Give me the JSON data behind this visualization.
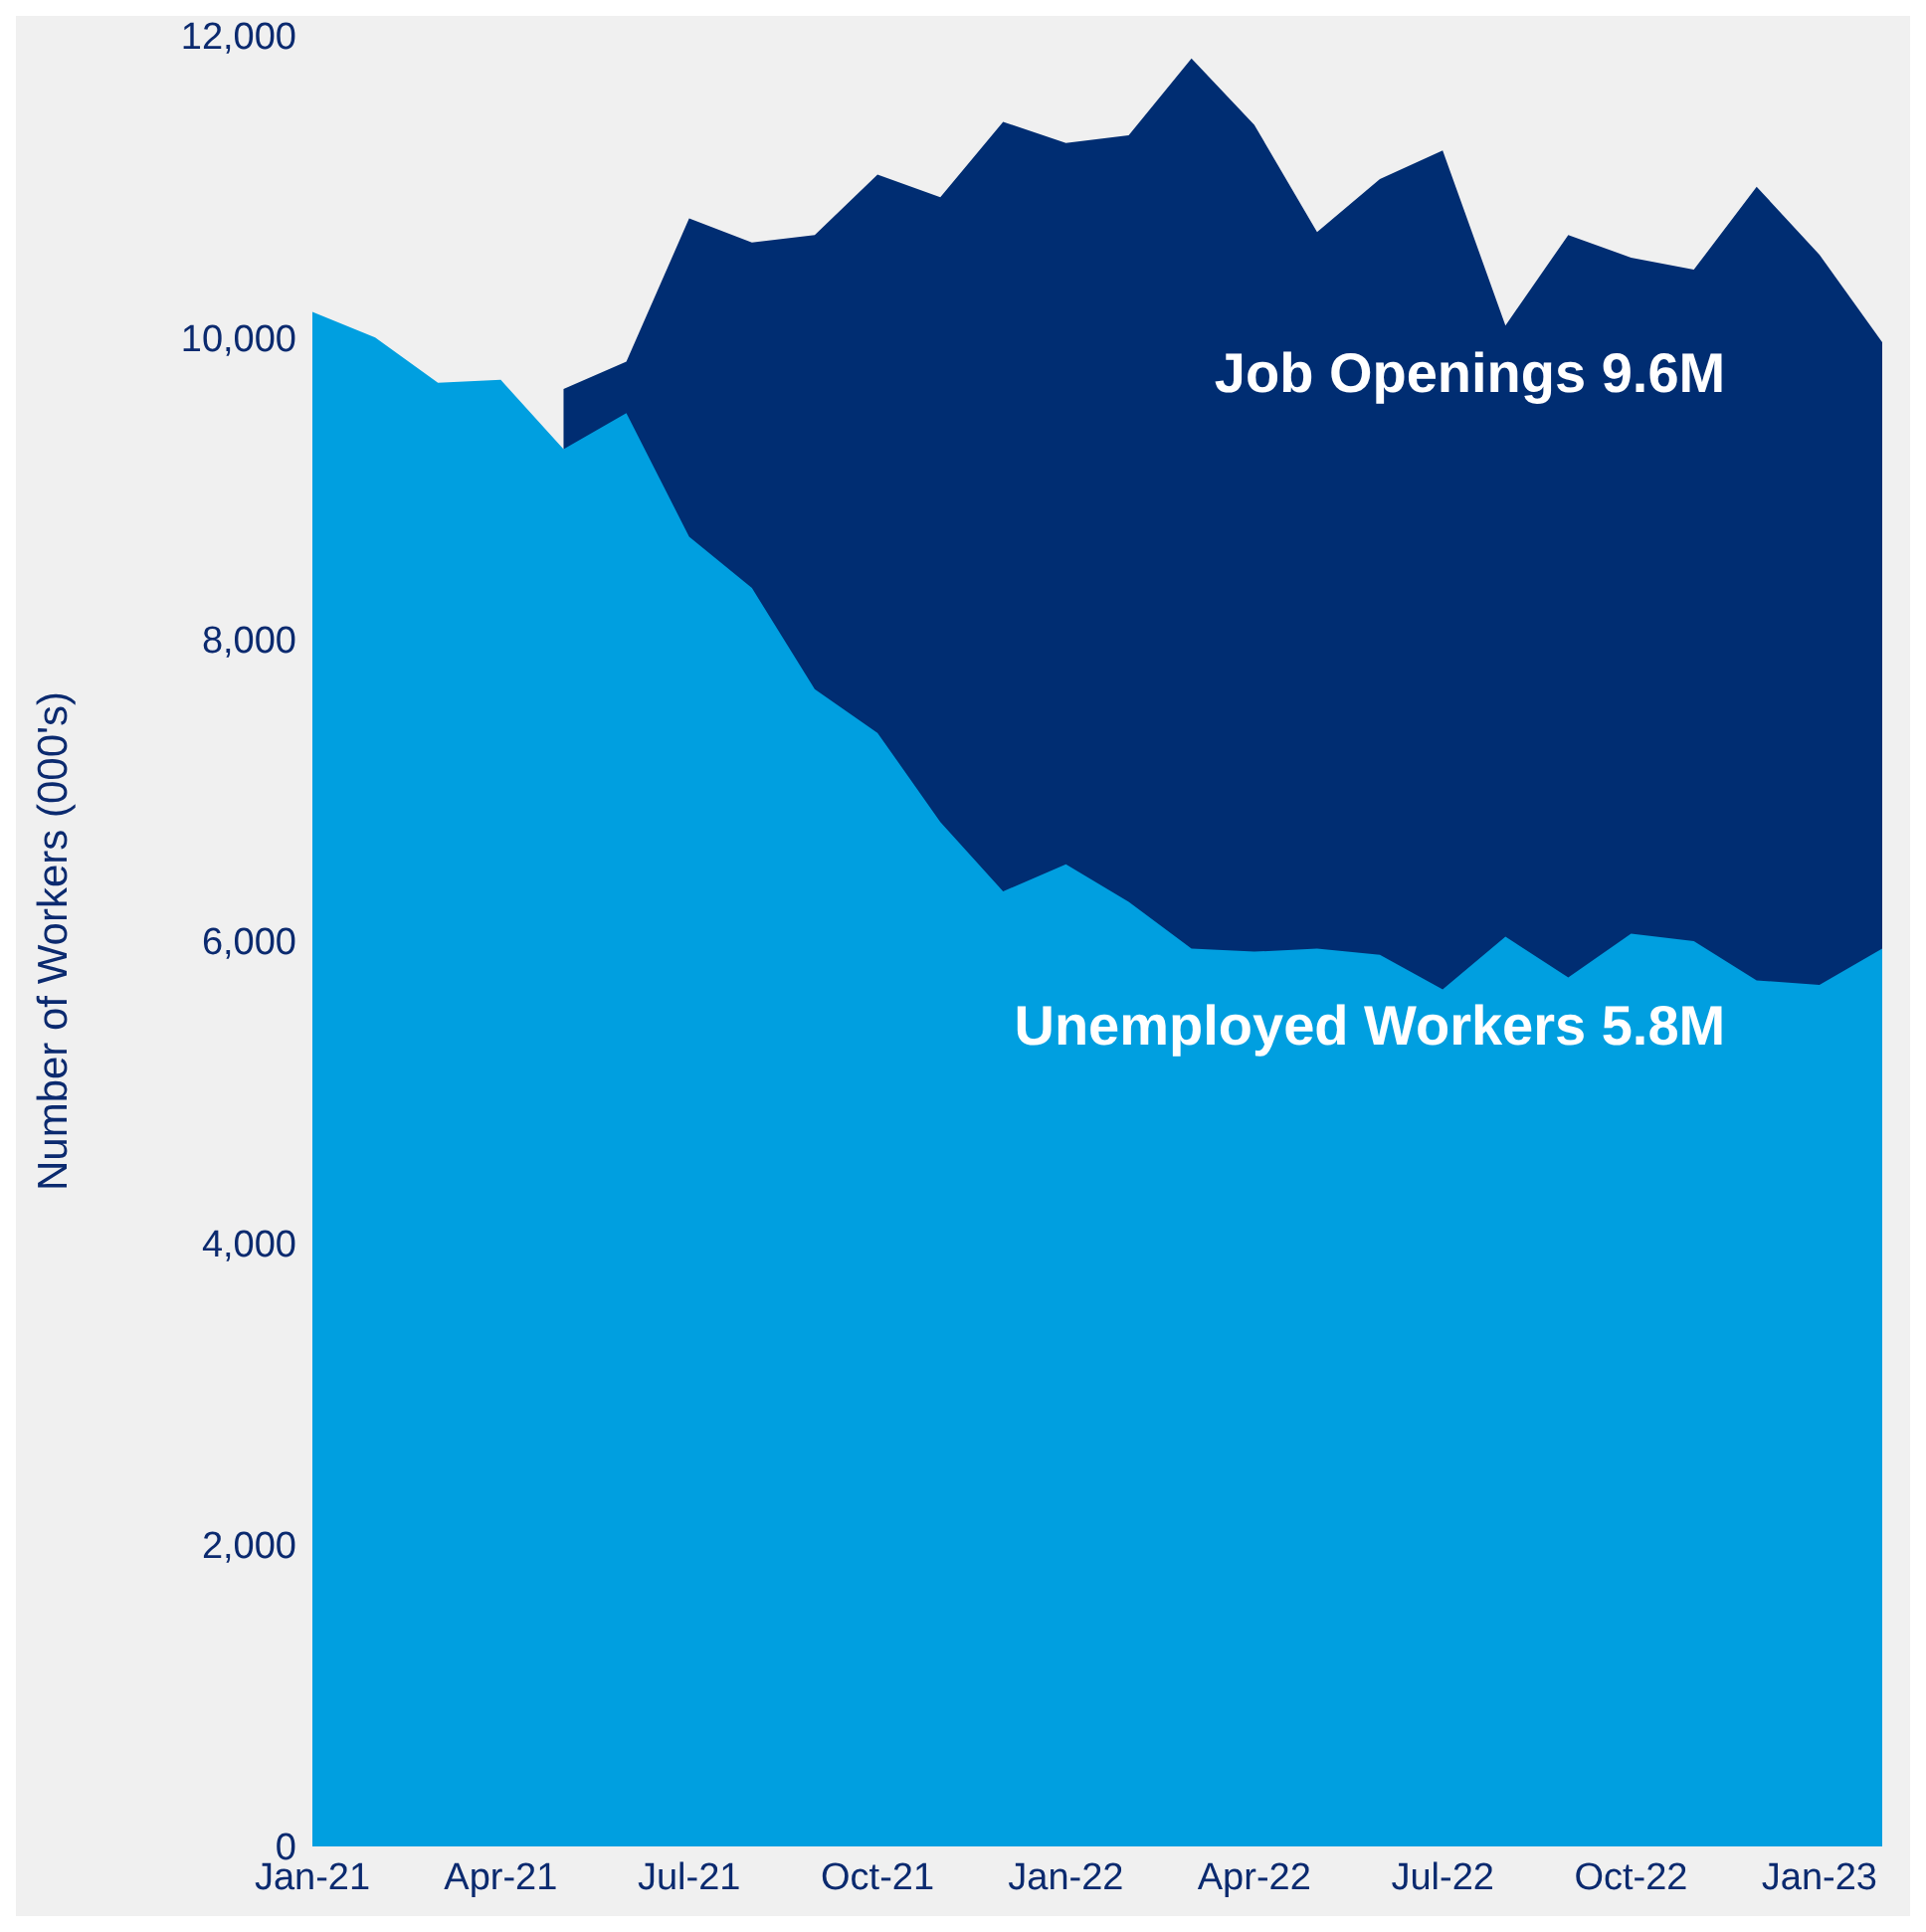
{
  "chart_data": {
    "type": "area",
    "ylabel": "Number of Workers (000's)",
    "categories": [
      "Jan-21",
      null,
      null,
      "Apr-21",
      null,
      null,
      "Jul-21",
      null,
      null,
      "Oct-21",
      null,
      null,
      "Jan-22",
      null,
      null,
      "Apr-22",
      null,
      null,
      "Jul-22",
      null,
      null,
      "Oct-22",
      null,
      null,
      "Jan-23",
      null
    ],
    "ylim": [
      0,
      12000
    ],
    "yticks": [
      0,
      {
        "value": 2000,
        "label": "2,000"
      },
      {
        "value": 4000,
        "label": "4,000"
      },
      {
        "value": 6000,
        "label": "6,000"
      },
      {
        "value": 8000,
        "label": "8,000"
      },
      {
        "value": 10000,
        "label": "10,000"
      },
      {
        "value": 12000,
        "label": "12,000"
      }
    ],
    "grid": false,
    "legend": false,
    "series": [
      {
        "name": "Job Openings 9.6M",
        "color": "#002d72",
        "values": [
          null,
          null,
          null,
          null,
          9660,
          9840,
          10790,
          10630,
          10680,
          11080,
          10930,
          11430,
          11290,
          11340,
          11850,
          11410,
          10700,
          11050,
          11240,
          10080,
          10680,
          10530,
          10450,
          11000,
          10550,
          9970
        ]
      },
      {
        "name": "Unemployed Workers 5.8M",
        "color": "#009fe0",
        "values": [
          10170,
          10000,
          9700,
          9720,
          9260,
          9500,
          8680,
          8340,
          7670,
          7380,
          6790,
          6330,
          6510,
          6260,
          5950,
          5930,
          5950,
          5910,
          5680,
          6030,
          5760,
          6050,
          6000,
          5740,
          5710,
          5950
        ]
      }
    ]
  }
}
